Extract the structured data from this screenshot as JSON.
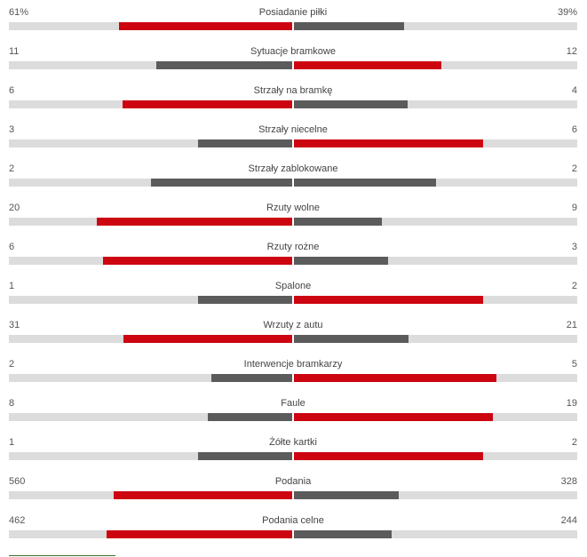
{
  "colors": {
    "winner": "#cc0511",
    "loser": "#5b5b5b",
    "track": "#dcdcdc"
  },
  "stats": [
    {
      "name": "Posiadanie piłki",
      "home": "61%",
      "away": "39%",
      "home_value": 61,
      "away_value": 39
    },
    {
      "name": "Sytuacje bramkowe",
      "home": "11",
      "away": "12",
      "home_value": 11,
      "away_value": 12
    },
    {
      "name": "Strzały na bramkę",
      "home": "6",
      "away": "4",
      "home_value": 6,
      "away_value": 4
    },
    {
      "name": "Strzały niecelne",
      "home": "3",
      "away": "6",
      "home_value": 3,
      "away_value": 6
    },
    {
      "name": "Strzały zablokowane",
      "home": "2",
      "away": "2",
      "home_value": 2,
      "away_value": 2
    },
    {
      "name": "Rzuty wolne",
      "home": "20",
      "away": "9",
      "home_value": 20,
      "away_value": 9
    },
    {
      "name": "Rzuty rożne",
      "home": "6",
      "away": "3",
      "home_value": 6,
      "away_value": 3
    },
    {
      "name": "Spalone",
      "home": "1",
      "away": "2",
      "home_value": 1,
      "away_value": 2
    },
    {
      "name": "Wrzuty z autu",
      "home": "31",
      "away": "21",
      "home_value": 31,
      "away_value": 21
    },
    {
      "name": "Interwencje bramkarzy",
      "home": "2",
      "away": "5",
      "home_value": 2,
      "away_value": 5
    },
    {
      "name": "Faule",
      "home": "8",
      "away": "19",
      "home_value": 8,
      "away_value": 19
    },
    {
      "name": "Żółte kartki",
      "home": "1",
      "away": "2",
      "home_value": 1,
      "away_value": 2
    },
    {
      "name": "Podania",
      "home": "560",
      "away": "328",
      "home_value": 560,
      "away_value": 328
    },
    {
      "name": "Podania celne",
      "home": "462",
      "away": "244",
      "home_value": 462,
      "away_value": 244
    }
  ]
}
